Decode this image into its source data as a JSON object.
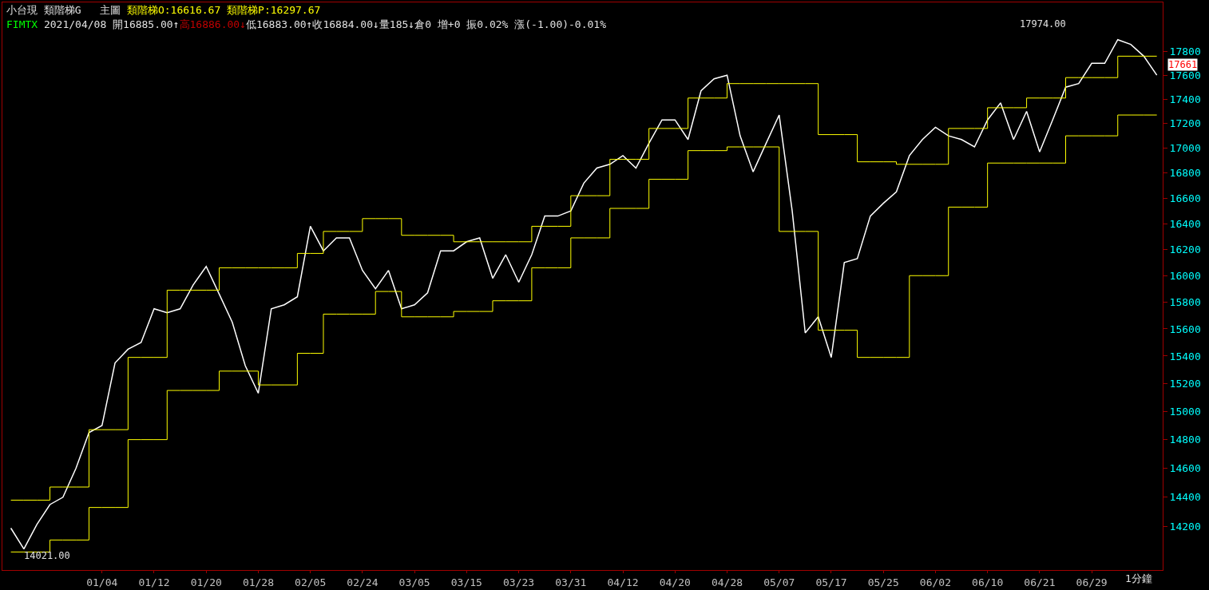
{
  "chart_data": {
    "type": "line",
    "log": true,
    "grid": false,
    "marker": "none",
    "categories": [
      null,
      null,
      null,
      null,
      null,
      null,
      null,
      "01/04",
      null,
      null,
      null,
      "01/12",
      null,
      null,
      null,
      "01/20",
      null,
      null,
      null,
      "01/28",
      null,
      null,
      null,
      "02/05",
      null,
      null,
      null,
      "02/24",
      null,
      null,
      null,
      "03/05",
      null,
      null,
      null,
      "03/15",
      null,
      null,
      null,
      "03/23",
      null,
      null,
      null,
      "03/31",
      null,
      null,
      null,
      "04/12",
      null,
      null,
      null,
      "04/20",
      null,
      null,
      null,
      "04/28",
      null,
      null,
      null,
      "05/07",
      null,
      null,
      null,
      "05/17",
      null,
      null,
      null,
      "05/25",
      null,
      null,
      null,
      "06/02",
      null,
      null,
      null,
      "06/10",
      null,
      null,
      null,
      "06/21",
      null,
      null,
      null,
      "06/29",
      null,
      null,
      null,
      null,
      null
    ],
    "ylim": [
      13910,
      18220
    ],
    "yticks": [
      14200,
      14400,
      14600,
      14800,
      15000,
      15200,
      15400,
      15600,
      15800,
      16000,
      16200,
      16400,
      16600,
      16800,
      17000,
      17200,
      17400,
      17600,
      17800
    ],
    "series": [
      {
        "color": "#ffffff",
        "values": [
          14190,
          14050,
          14215,
          14350,
          14400,
          14600,
          14850,
          14900,
          15350,
          15450,
          15500,
          15750,
          15720,
          15750,
          15930,
          16070,
          15860,
          15650,
          15330,
          15130,
          15750,
          15780,
          15840,
          16380,
          16190,
          16290,
          16290,
          16040,
          15900,
          16040,
          15750,
          15780,
          15870,
          16190,
          16190,
          16260,
          16290,
          15980,
          16160,
          15950,
          16160,
          16460,
          16460,
          16500,
          16720,
          16840,
          16870,
          16940,
          16840,
          17040,
          17230,
          17230,
          17070,
          17470,
          17570,
          17600,
          17100,
          16810,
          17040,
          17270,
          16500,
          15570,
          15690,
          15390,
          16100,
          16130,
          16460,
          16560,
          16650,
          16940,
          17070,
          17170,
          17100,
          17070,
          17010,
          17230,
          17370,
          17070,
          17300,
          16970,
          17230,
          17500,
          17530,
          17700,
          17700,
          17900,
          17860,
          17760,
          17600
        ]
      },
      {
        "type": "step",
        "color": "#ffff00",
        "values": [
          14380,
          14380,
          14380,
          14470,
          14470,
          14470,
          14870,
          14870,
          14870,
          15390,
          15390,
          15390,
          15890,
          15890,
          15890,
          15890,
          16060,
          16060,
          16060,
          16060,
          16060,
          16060,
          16170,
          16170,
          16340,
          16340,
          16340,
          16440,
          16440,
          16440,
          16310,
          16310,
          16310,
          16310,
          16260,
          16260,
          16260,
          16260,
          16260,
          16260,
          16380,
          16380,
          16380,
          16620,
          16620,
          16620,
          16910,
          16910,
          16910,
          17160,
          17160,
          17160,
          17410,
          17410,
          17410,
          17530,
          17530,
          17530,
          17530,
          17530,
          17530,
          17530,
          17110,
          17110,
          17110,
          16890,
          16890,
          16890,
          16870,
          16870,
          16870,
          16870,
          17160,
          17160,
          17160,
          17330,
          17330,
          17330,
          17410,
          17410,
          17410,
          17580,
          17580,
          17580,
          17580,
          17760,
          17760,
          17760,
          17760
        ]
      },
      {
        "type": "step",
        "color": "#ffff00",
        "values": [
          14030,
          14030,
          14030,
          14110,
          14110,
          14110,
          14330,
          14330,
          14330,
          14800,
          14800,
          14800,
          15150,
          15150,
          15150,
          15150,
          15290,
          15290,
          15290,
          15190,
          15190,
          15190,
          15420,
          15420,
          15710,
          15710,
          15710,
          15710,
          15880,
          15880,
          15690,
          15690,
          15690,
          15690,
          15730,
          15730,
          15730,
          15810,
          15810,
          15810,
          16060,
          16060,
          16060,
          16290,
          16290,
          16290,
          16520,
          16520,
          16520,
          16750,
          16750,
          16750,
          16980,
          16980,
          16980,
          17010,
          17010,
          17010,
          17010,
          16340,
          16340,
          16340,
          15590,
          15590,
          15590,
          15390,
          15390,
          15390,
          15390,
          16000,
          16000,
          16000,
          16530,
          16530,
          16530,
          16880,
          16880,
          16880,
          16880,
          16880,
          16880,
          17100,
          17100,
          17100,
          17100,
          17270,
          17270,
          17270,
          17270
        ]
      }
    ],
    "annotations": [
      "小台現 類階梯G",
      "主圖",
      "類階梯O:16616.67",
      "類階梯P:16297.67",
      "FIMTX",
      "2021/04/08 開16885.00↑",
      "高16886.00↓",
      "低16883.00↑收16884.00↓量185↓倉0 增+0 振0.02% 漲(-1.00)-0.01%",
      "17974.00",
      "14021.00",
      "17661",
      "1分鐘"
    ]
  }
}
